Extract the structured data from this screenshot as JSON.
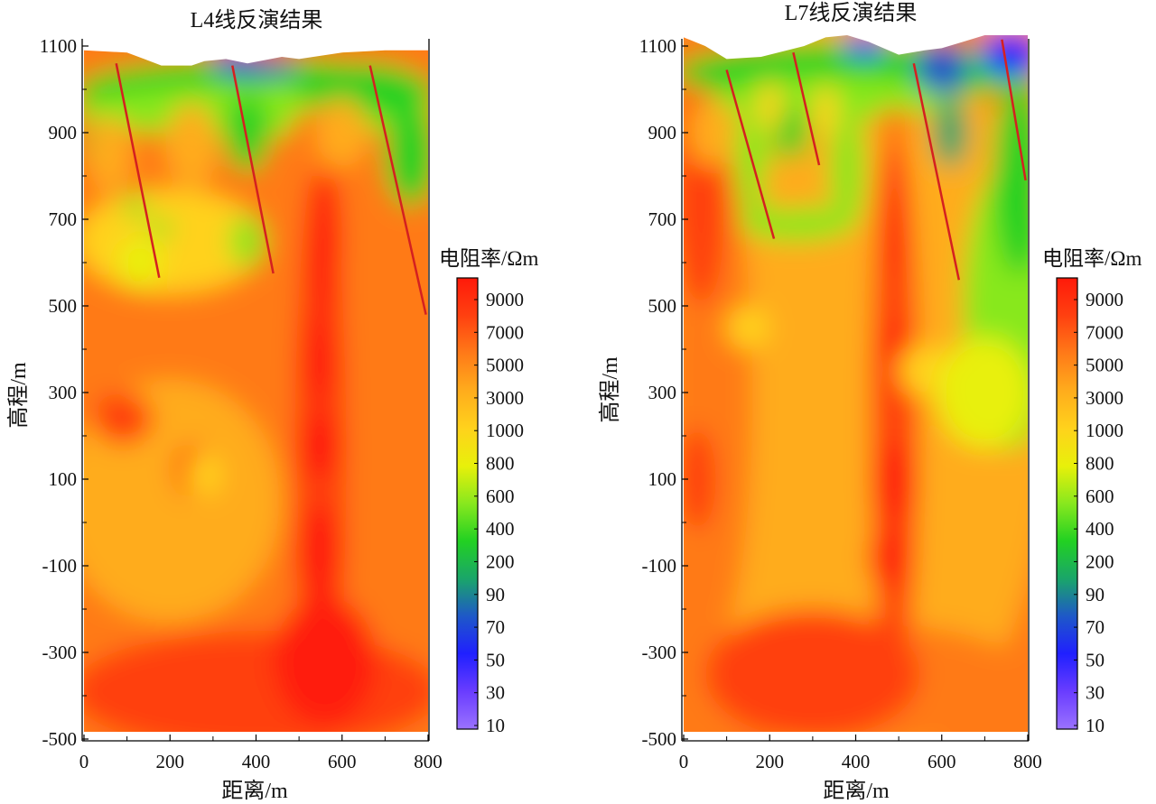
{
  "chart_data": [
    {
      "type": "heatmap",
      "title": "L4线反演结果",
      "xlabel": "距离/m",
      "ylabel": "高程/m",
      "xlim": [
        0,
        800
      ],
      "ylim": [
        -500,
        1100
      ],
      "xticks": [
        0,
        200,
        400,
        600,
        800
      ],
      "yticks": [
        1100,
        900,
        700,
        500,
        300,
        100,
        -100,
        -300,
        -500
      ],
      "surface": [
        [
          0,
          1090
        ],
        [
          100,
          1085
        ],
        [
          140,
          1070
        ],
        [
          180,
          1055
        ],
        [
          250,
          1055
        ],
        [
          280,
          1065
        ],
        [
          330,
          1070
        ],
        [
          380,
          1060
        ],
        [
          460,
          1075
        ],
        [
          500,
          1070
        ],
        [
          600,
          1085
        ],
        [
          700,
          1090
        ],
        [
          800,
          1090
        ]
      ],
      "faults": [
        [
          [
            75,
            1060
          ],
          [
            175,
            565
          ]
        ],
        [
          [
            345,
            1055
          ],
          [
            440,
            575
          ]
        ],
        [
          [
            665,
            1055
          ],
          [
            795,
            480
          ]
        ]
      ],
      "colorbar": {
        "label": "电阻率/Ωm",
        "ticks": [
          "9000",
          "7000",
          "5000",
          "3000",
          "1000",
          "800",
          "600",
          "400",
          "200",
          "90",
          "70",
          "50",
          "30",
          "10"
        ]
      }
    },
    {
      "type": "heatmap",
      "title": "L7线反演结果",
      "xlabel": "距离/m",
      "ylabel": "高程/m",
      "xlim": [
        0,
        800
      ],
      "ylim": [
        -500,
        1100
      ],
      "xticks": [
        0,
        200,
        400,
        600,
        800
      ],
      "yticks": [
        1100,
        900,
        700,
        500,
        300,
        100,
        -100,
        -300,
        -500
      ],
      "surface": [
        [
          0,
          1120
        ],
        [
          50,
          1100
        ],
        [
          100,
          1070
        ],
        [
          180,
          1075
        ],
        [
          280,
          1100
        ],
        [
          330,
          1120
        ],
        [
          380,
          1125
        ],
        [
          430,
          1110
        ],
        [
          500,
          1080
        ],
        [
          560,
          1090
        ],
        [
          600,
          1095
        ],
        [
          650,
          1110
        ],
        [
          700,
          1125
        ],
        [
          800,
          1125
        ]
      ],
      "faults": [
        [
          [
            100,
            1045
          ],
          [
            210,
            655
          ]
        ],
        [
          [
            255,
            1085
          ],
          [
            315,
            825
          ]
        ],
        [
          [
            535,
            1060
          ],
          [
            640,
            560
          ]
        ],
        [
          [
            740,
            1115
          ],
          [
            795,
            790
          ]
        ]
      ],
      "colorbar": {
        "label": "电阻率/Ωm",
        "ticks": [
          "9000",
          "7000",
          "5000",
          "3000",
          "1000",
          "800",
          "600",
          "400",
          "200",
          "90",
          "70",
          "50",
          "30",
          "10"
        ]
      }
    }
  ],
  "colors": {
    "scale": [
      "#9a72ff",
      "#6a3dff",
      "#2020ff",
      "#1e58c8",
      "#1aa56a",
      "#22d122",
      "#88e81e",
      "#e8f00a",
      "#ffd21c",
      "#ffac1c",
      "#ff7a18",
      "#ff4010",
      "#ff1a0a"
    ],
    "fault": "#d42020"
  }
}
